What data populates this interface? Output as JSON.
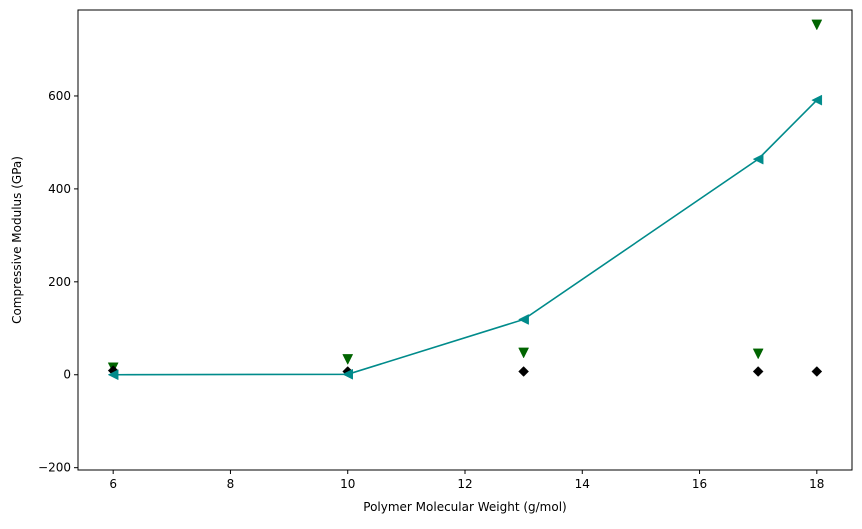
{
  "chart_data": {
    "type": "line",
    "title": "",
    "xlabel": "Polymer Molecular Weight (g/mol)",
    "ylabel": "Compressive Modulus (GPa)",
    "xlim": [
      5.4,
      18.6
    ],
    "ylim": [
      -205,
      785
    ],
    "xticks": [
      6,
      8,
      10,
      12,
      14,
      16,
      18
    ],
    "yticks": [
      -200,
      0,
      200,
      400,
      600
    ],
    "ytick_labels": [
      "−200",
      "0",
      "200",
      "400",
      "600"
    ],
    "grid": false,
    "series": [
      {
        "style": "line+markers",
        "marker": "triangle-left",
        "color": "#008b8b",
        "x": [
          6,
          10,
          13,
          17,
          18
        ],
        "y": [
          0,
          1,
          119,
          464,
          591
        ]
      },
      {
        "style": "markers",
        "marker": "triangle-down",
        "color": "#006400",
        "x": [
          6,
          10,
          13,
          17,
          18
        ],
        "y": [
          15,
          33,
          47,
          45,
          753
        ]
      },
      {
        "style": "markers",
        "marker": "diamond",
        "color": "#000000",
        "x": [
          6,
          10,
          13,
          17,
          18
        ],
        "y": [
          9,
          7,
          7,
          7,
          7
        ]
      }
    ]
  }
}
